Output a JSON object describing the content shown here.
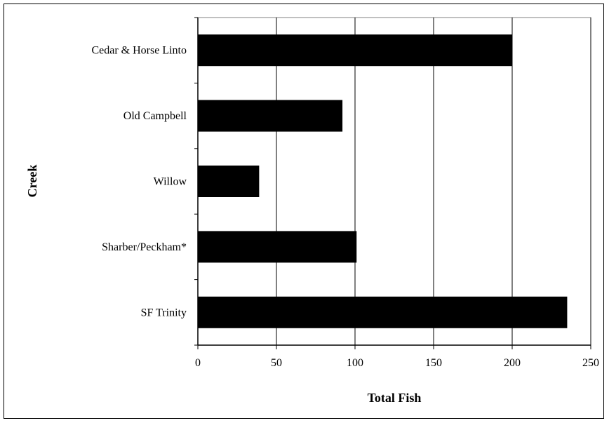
{
  "chart_data": {
    "type": "bar",
    "orientation": "horizontal",
    "categories": [
      "Cedar & Horse Linto",
      "Old Campbell",
      "Willow",
      "Sharber/Peckham*",
      "SF Trinity"
    ],
    "values": [
      200,
      92,
      39,
      101,
      235
    ],
    "title": "",
    "xlabel": "Total Fish",
    "ylabel": "Creek",
    "xlim": [
      0,
      250
    ],
    "xticks": [
      0,
      50,
      100,
      150,
      200,
      250
    ],
    "xtick_labels": [
      "0",
      "50",
      "100",
      "150",
      "200",
      "250"
    ],
    "grid": "vertical",
    "legend": "none",
    "bar_color": "#000000"
  }
}
